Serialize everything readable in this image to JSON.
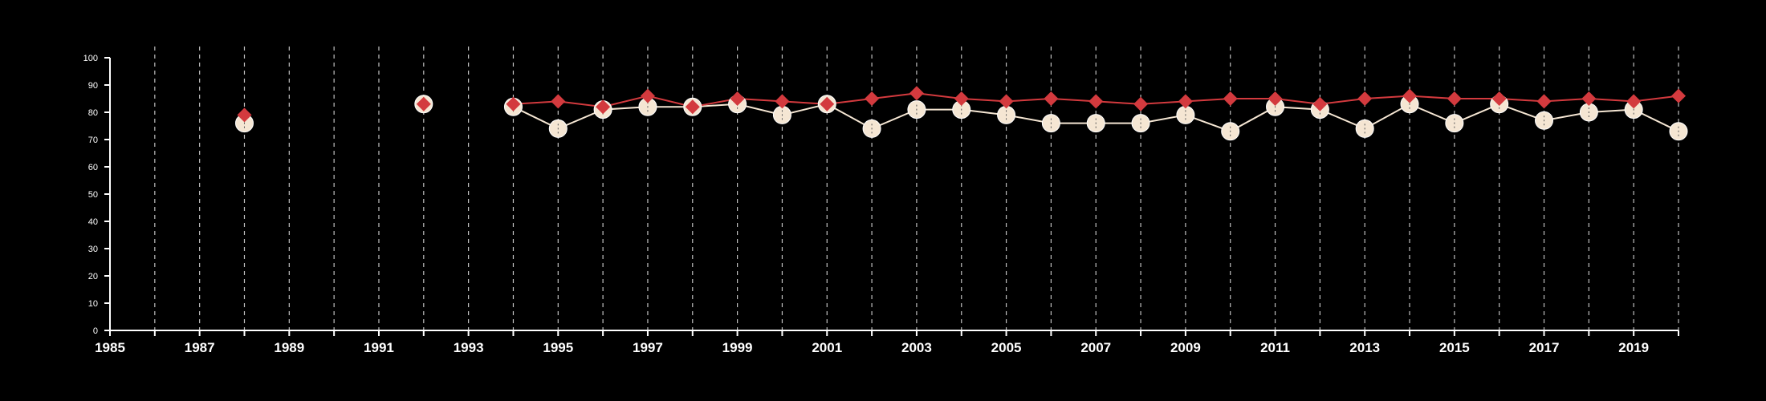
{
  "chart_data": {
    "type": "line",
    "xlim": [
      1985,
      2020
    ],
    "ylim": [
      0,
      100
    ],
    "x_ticks": [
      "1985",
      "1987",
      "1989",
      "1991",
      "1993",
      "1995",
      "1997",
      "1999",
      "2001",
      "2003",
      "2005",
      "2007",
      "2009",
      "2011",
      "2013",
      "2015",
      "2017",
      "2019"
    ],
    "y_ticks": [
      "0",
      "10",
      "20",
      "30",
      "40",
      "50",
      "60",
      "70",
      "80",
      "90",
      "100"
    ],
    "grid": "vertical dashed lines at each year",
    "background": "#000000",
    "series": [
      {
        "color": "#f5e6d3",
        "marker": "circle",
        "points": [
          {
            "x": 1988,
            "y": 76
          },
          {
            "x": 1992,
            "y": 83
          },
          {
            "x": 1994,
            "y": 82
          },
          {
            "x": 1995,
            "y": 74
          },
          {
            "x": 1996,
            "y": 81
          },
          {
            "x": 1997,
            "y": 82
          },
          {
            "x": 1998,
            "y": 82
          },
          {
            "x": 1999,
            "y": 83
          },
          {
            "x": 2000,
            "y": 79
          },
          {
            "x": 2001,
            "y": 83
          },
          {
            "x": 2002,
            "y": 74
          },
          {
            "x": 2003,
            "y": 81
          },
          {
            "x": 2004,
            "y": 81
          },
          {
            "x": 2005,
            "y": 79
          },
          {
            "x": 2006,
            "y": 76
          },
          {
            "x": 2007,
            "y": 76
          },
          {
            "x": 2008,
            "y": 76
          },
          {
            "x": 2009,
            "y": 79
          },
          {
            "x": 2010,
            "y": 73
          },
          {
            "x": 2011,
            "y": 82
          },
          {
            "x": 2012,
            "y": 81
          },
          {
            "x": 2013,
            "y": 74
          },
          {
            "x": 2014,
            "y": 83
          },
          {
            "x": 2015,
            "y": 76
          },
          {
            "x": 2016,
            "y": 83
          },
          {
            "x": 2017,
            "y": 77
          },
          {
            "x": 2018,
            "y": 80
          },
          {
            "x": 2019,
            "y": 81
          },
          {
            "x": 2020,
            "y": 73
          }
        ]
      },
      {
        "color": "#d33a3e",
        "marker": "diamond",
        "points": [
          {
            "x": 1988,
            "y": 79
          },
          {
            "x": 1992,
            "y": 83
          },
          {
            "x": 1994,
            "y": 83
          },
          {
            "x": 1995,
            "y": 84
          },
          {
            "x": 1996,
            "y": 82
          },
          {
            "x": 1997,
            "y": 86
          },
          {
            "x": 1998,
            "y": 82
          },
          {
            "x": 1999,
            "y": 85
          },
          {
            "x": 2000,
            "y": 84
          },
          {
            "x": 2001,
            "y": 83
          },
          {
            "x": 2002,
            "y": 85
          },
          {
            "x": 2003,
            "y": 87
          },
          {
            "x": 2004,
            "y": 85
          },
          {
            "x": 2005,
            "y": 84
          },
          {
            "x": 2006,
            "y": 85
          },
          {
            "x": 2007,
            "y": 84
          },
          {
            "x": 2008,
            "y": 83
          },
          {
            "x": 2009,
            "y": 84
          },
          {
            "x": 2010,
            "y": 85
          },
          {
            "x": 2011,
            "y": 85
          },
          {
            "x": 2012,
            "y": 83
          },
          {
            "x": 2013,
            "y": 85
          },
          {
            "x": 2014,
            "y": 86
          },
          {
            "x": 2015,
            "y": 85
          },
          {
            "x": 2016,
            "y": 85
          },
          {
            "x": 2017,
            "y": 84
          },
          {
            "x": 2018,
            "y": 85
          },
          {
            "x": 2019,
            "y": 84
          },
          {
            "x": 2020,
            "y": 86
          }
        ]
      }
    ]
  }
}
